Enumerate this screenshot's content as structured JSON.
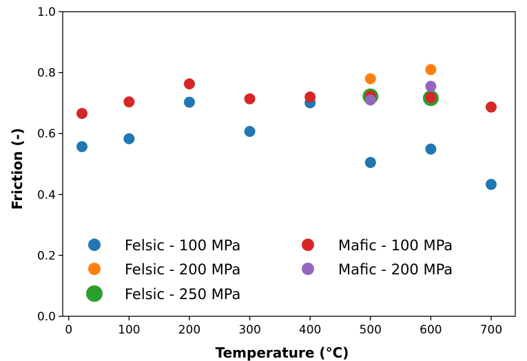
{
  "chart_data": {
    "type": "scatter",
    "title": "",
    "xlabel": "Temperature (°C)",
    "ylabel": "Friction (-)",
    "xlim": [
      -10,
      740
    ],
    "ylim": [
      0.0,
      1.0
    ],
    "xticks": [
      "0",
      "100",
      "200",
      "300",
      "400",
      "500",
      "600",
      "700"
    ],
    "yticks": [
      "0.0",
      "0.2",
      "0.4",
      "0.6",
      "0.8",
      "1.0"
    ],
    "grid": false,
    "legend_position": "lower-left",
    "series": [
      {
        "name": "Felsic - 100 MPa",
        "color": "#1f77b4",
        "marker": "small",
        "points": [
          [
            22,
            0.557
          ],
          [
            100,
            0.583
          ],
          [
            200,
            0.703
          ],
          [
            300,
            0.607
          ],
          [
            400,
            0.701
          ],
          [
            500,
            0.505
          ],
          [
            600,
            0.549
          ],
          [
            700,
            0.433
          ]
        ]
      },
      {
        "name": "Felsic - 200 MPa",
        "color": "#ff7f0e",
        "marker": "small",
        "points": [
          [
            500,
            0.78
          ],
          [
            600,
            0.81
          ]
        ]
      },
      {
        "name": "Felsic - 250 MPa",
        "color": "#2ca02c",
        "marker": "large",
        "points": [
          [
            500,
            0.722
          ],
          [
            600,
            0.716
          ]
        ]
      },
      {
        "name": "Mafic - 100 MPa",
        "color": "#d62728",
        "marker": "small",
        "points": [
          [
            22,
            0.666
          ],
          [
            100,
            0.704
          ],
          [
            200,
            0.763
          ],
          [
            300,
            0.714
          ],
          [
            400,
            0.72
          ],
          [
            500,
            0.723
          ],
          [
            600,
            0.718
          ],
          [
            700,
            0.687
          ]
        ]
      },
      {
        "name": "Mafic - 200 MPa",
        "color": "#9467bd",
        "marker": "small",
        "points": [
          [
            500,
            0.71
          ],
          [
            600,
            0.755
          ]
        ]
      }
    ]
  }
}
